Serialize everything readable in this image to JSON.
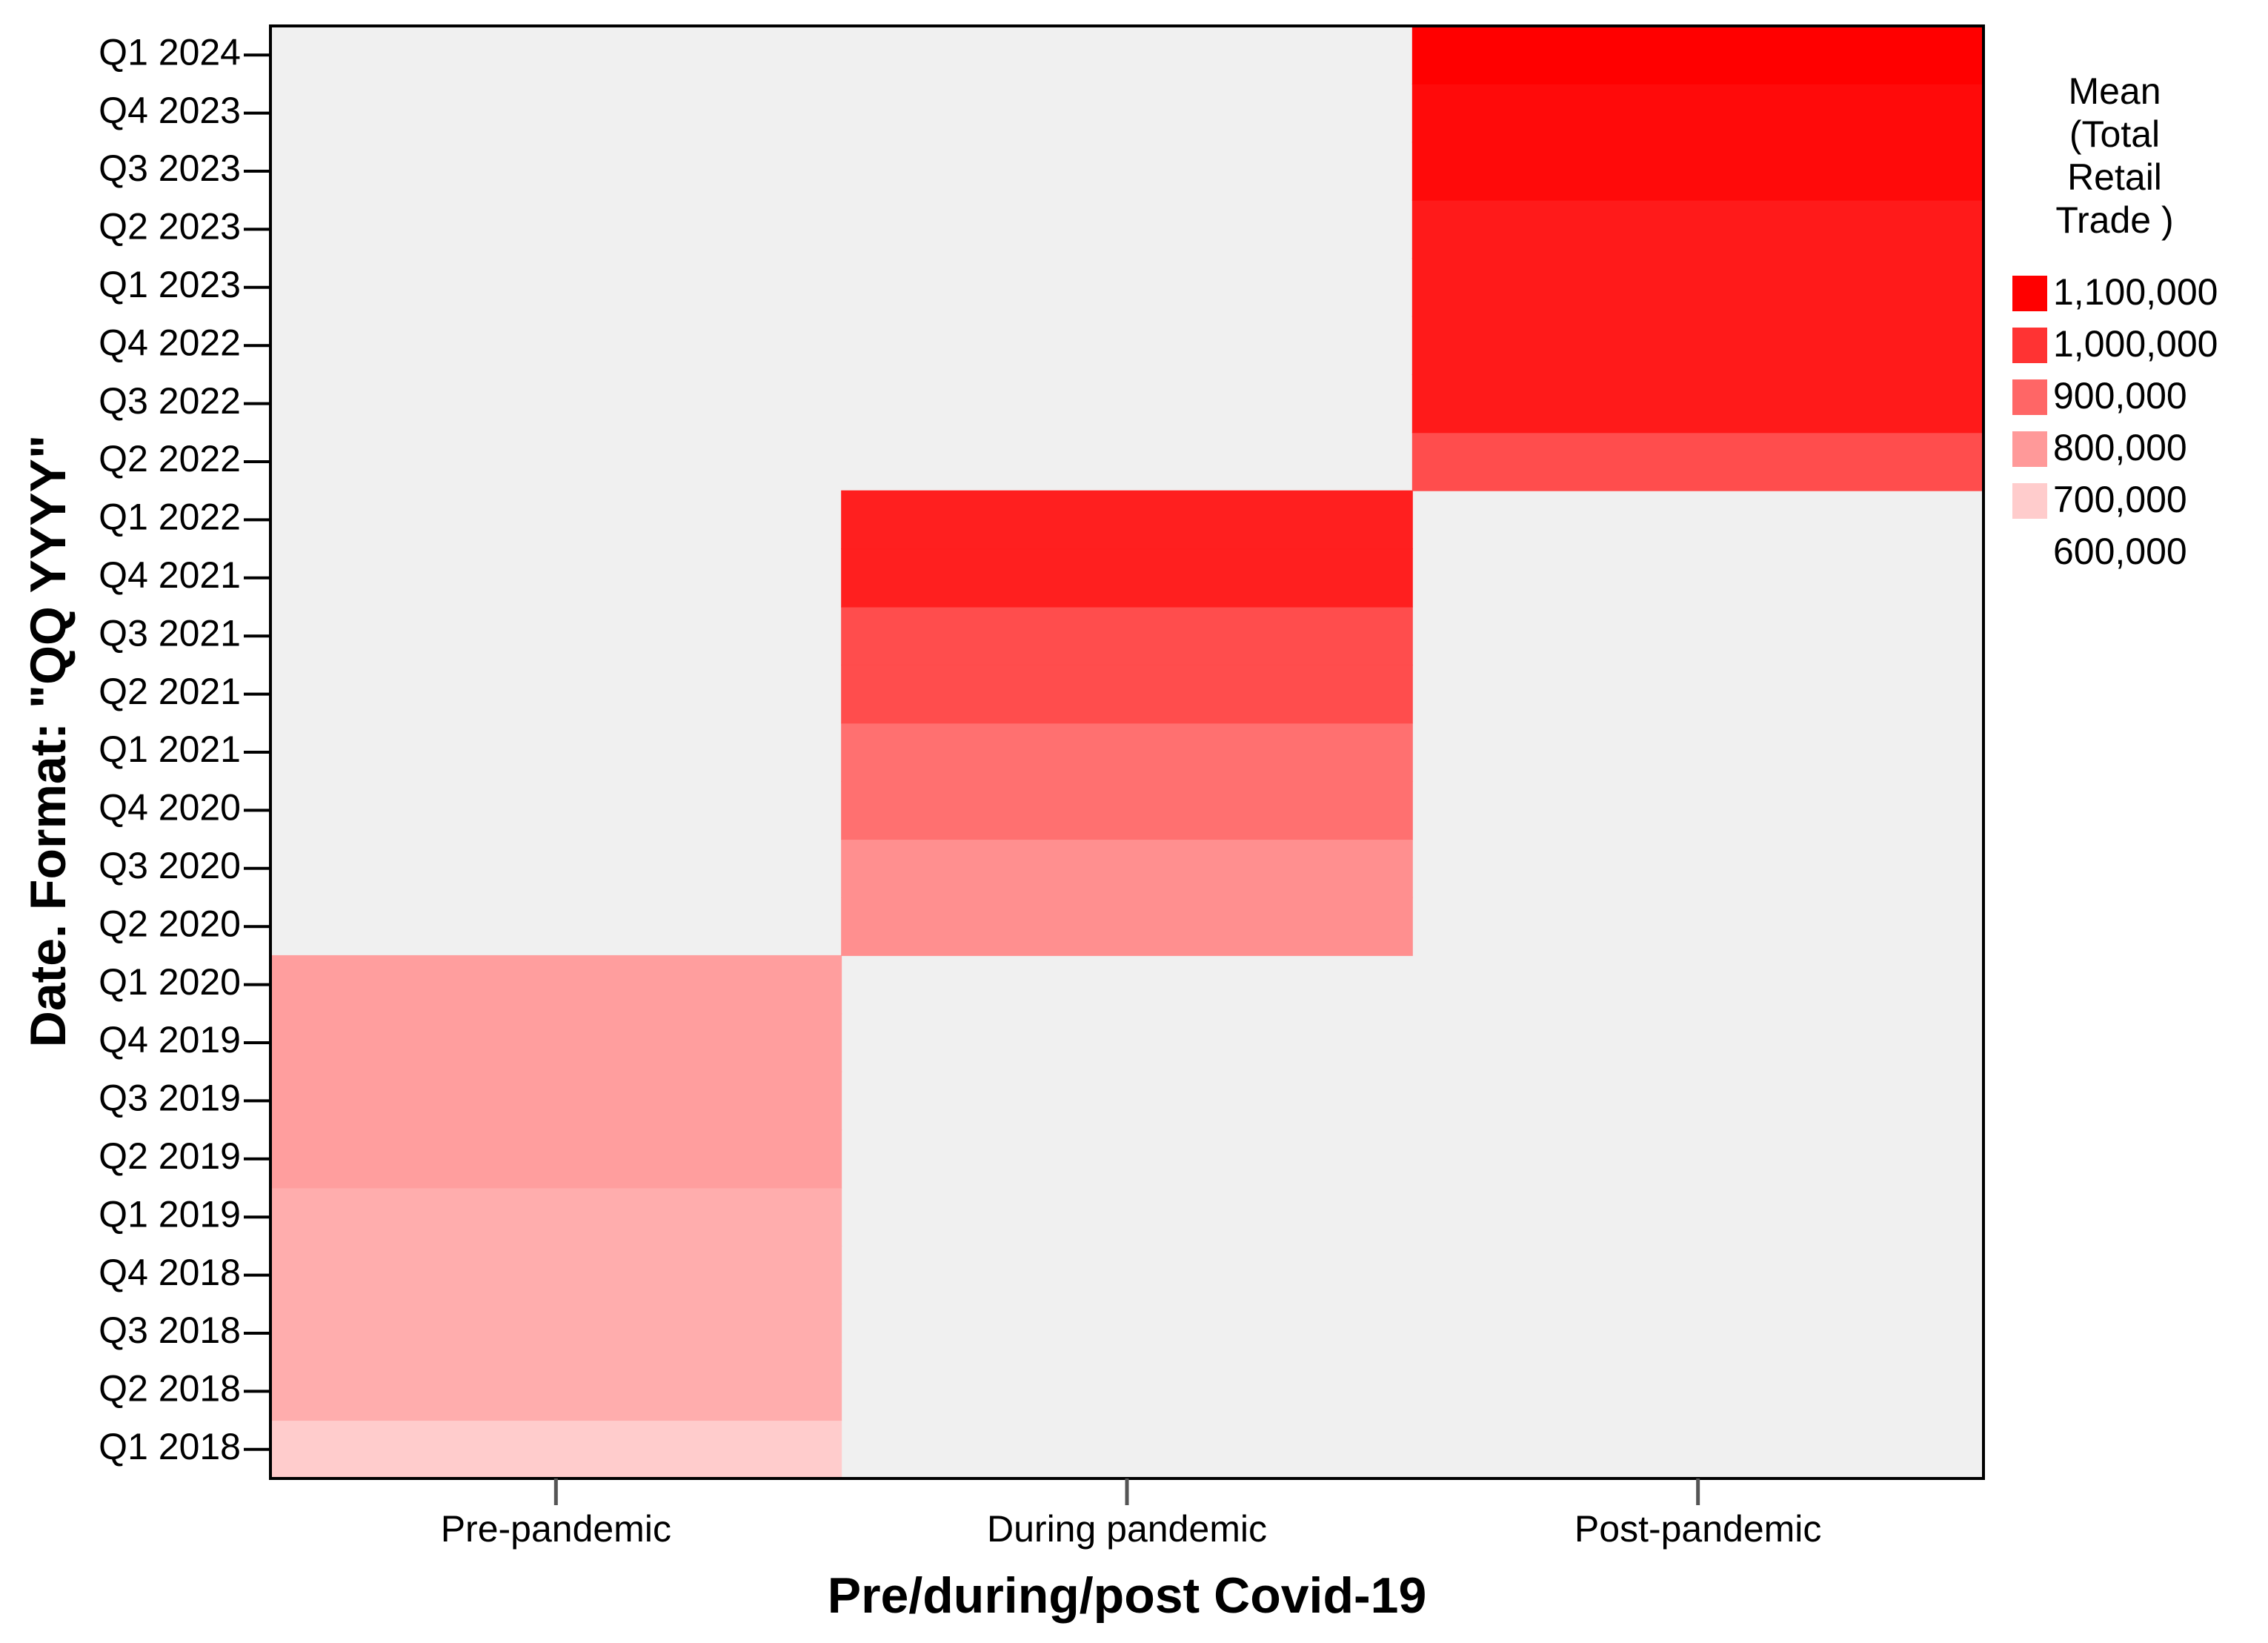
{
  "chart_data": {
    "type": "heatmap",
    "x_label": "Pre/during/post Covid-19",
    "y_label": "Date.  Format:  \"QQ YYYY\"",
    "x_categories": [
      "Pre-pandemic",
      "During pandemic",
      "Post-pandemic"
    ],
    "y_categories": [
      "Q1 2018",
      "Q2 2018",
      "Q3 2018",
      "Q4 2018",
      "Q1 2019",
      "Q2 2019",
      "Q3 2019",
      "Q4 2019",
      "Q1 2020",
      "Q2 2020",
      "Q3 2020",
      "Q4 2020",
      "Q1 2021",
      "Q2 2021",
      "Q3 2021",
      "Q4 2021",
      "Q1 2022",
      "Q2 2022",
      "Q3 2022",
      "Q4 2022",
      "Q1 2023",
      "Q2 2023",
      "Q3 2023",
      "Q4 2023",
      "Q1 2024"
    ],
    "values": [
      [
        700000,
        null,
        null
      ],
      [
        760000,
        null,
        null
      ],
      [
        760000,
        null,
        null
      ],
      [
        760000,
        null,
        null
      ],
      [
        760000,
        null,
        null
      ],
      [
        790000,
        null,
        null
      ],
      [
        790000,
        null,
        null
      ],
      [
        790000,
        null,
        null
      ],
      [
        790000,
        null,
        null
      ],
      [
        null,
        820000,
        null
      ],
      [
        null,
        820000,
        null
      ],
      [
        null,
        880000,
        null
      ],
      [
        null,
        880000,
        null
      ],
      [
        null,
        950000,
        null
      ],
      [
        null,
        950000,
        null
      ],
      [
        null,
        1040000,
        null
      ],
      [
        null,
        1040000,
        null
      ],
      [
        null,
        null,
        950000
      ],
      [
        null,
        null,
        1050000
      ],
      [
        null,
        null,
        1050000
      ],
      [
        null,
        null,
        1050000
      ],
      [
        null,
        null,
        1050000
      ],
      [
        null,
        null,
        1080000
      ],
      [
        null,
        null,
        1080000
      ],
      [
        null,
        null,
        1100000
      ]
    ],
    "legend_title": [
      "Mean",
      "(Total",
      "Retail",
      "Trade )"
    ],
    "clim": [
      600000,
      1100000
    ],
    "color_range": [
      "#ffffff",
      "#ff0000"
    ],
    "missing_color": "#f0f0f0",
    "cticks": [
      {
        "value": 1100000,
        "label": "1,100,000"
      },
      {
        "value": 1000000,
        "label": "1,000,000"
      },
      {
        "value": 900000,
        "label": "900,000"
      },
      {
        "value": 800000,
        "label": "800,000"
      },
      {
        "value": 700000,
        "label": "700,000"
      },
      {
        "value": 600000,
        "label": "600,000"
      }
    ]
  }
}
